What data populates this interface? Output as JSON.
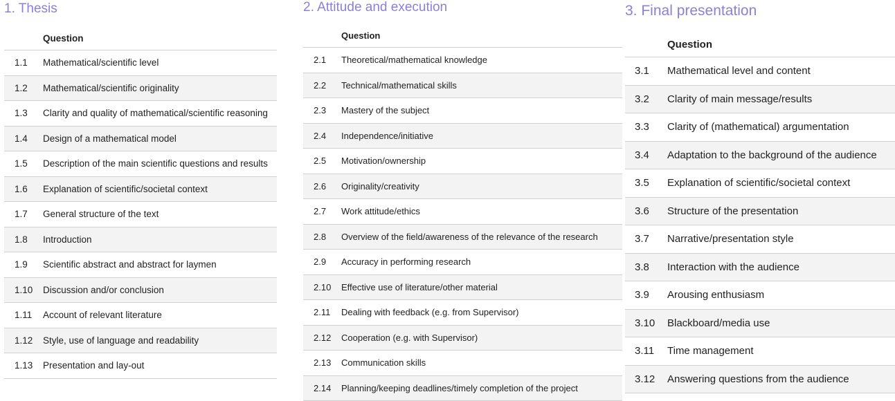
{
  "colors": {
    "title": "#8b80d9",
    "row_alt": "#f3f3f3",
    "divider": "#d0d0d0"
  },
  "sections": [
    {
      "title": "1. Thesis",
      "header": "Question",
      "items": [
        {
          "num": "1.1",
          "text": "Mathematical/scientific level"
        },
        {
          "num": "1.2",
          "text": "Mathematical/scientific originality"
        },
        {
          "num": "1.3",
          "text": "Clarity and quality of mathematical/scientific reasoning"
        },
        {
          "num": "1.4",
          "text": "Design of a mathematical model"
        },
        {
          "num": "1.5",
          "text": "Description of the main scientific questions and results"
        },
        {
          "num": "1.6",
          "text": "Explanation of scientific/societal context"
        },
        {
          "num": "1.7",
          "text": "General structure of the text"
        },
        {
          "num": "1.8",
          "text": "Introduction"
        },
        {
          "num": "1.9",
          "text": "Scientific abstract and abstract for laymen"
        },
        {
          "num": "1.10",
          "text": "Discussion and/or conclusion"
        },
        {
          "num": "1.11",
          "text": "Account of relevant literature"
        },
        {
          "num": "1.12",
          "text": "Style, use of language and readability"
        },
        {
          "num": "1.13",
          "text": "Presentation and lay-out"
        }
      ]
    },
    {
      "title": "2. Attitude and execution",
      "header": "Question",
      "items": [
        {
          "num": "2.1",
          "text": "Theoretical/mathematical knowledge"
        },
        {
          "num": "2.2",
          "text": "Technical/mathematical skills"
        },
        {
          "num": "2.3",
          "text": "Mastery of the subject"
        },
        {
          "num": "2.4",
          "text": "Independence/initiative"
        },
        {
          "num": "2.5",
          "text": "Motivation/ownership"
        },
        {
          "num": "2.6",
          "text": "Originality/creativity"
        },
        {
          "num": "2.7",
          "text": "Work attitude/ethics"
        },
        {
          "num": "2.8",
          "text": "Overview of the field/awareness of the relevance of the research"
        },
        {
          "num": "2.9",
          "text": "Accuracy in performing research"
        },
        {
          "num": "2.10",
          "text": "Effective use of literature/other material"
        },
        {
          "num": "2.11",
          "text": "Dealing with feedback (e.g. from Supervisor)"
        },
        {
          "num": "2.12",
          "text": "Cooperation (e.g. with Supervisor)"
        },
        {
          "num": "2.13",
          "text": "Communication skills"
        },
        {
          "num": "2.14",
          "text": "Planning/keeping deadlines/timely completion of the project"
        }
      ]
    },
    {
      "title": "3. Final presentation",
      "header": "Question",
      "items": [
        {
          "num": "3.1",
          "text": "Mathematical level and content"
        },
        {
          "num": "3.2",
          "text": "Clarity of main message/results"
        },
        {
          "num": "3.3",
          "text": "Clarity of (mathematical) argumentation"
        },
        {
          "num": "3.4",
          "text": "Adaptation to the background of the audience"
        },
        {
          "num": "3.5",
          "text": "Explanation of scientific/societal context"
        },
        {
          "num": "3.6",
          "text": "Structure of the presentation"
        },
        {
          "num": "3.7",
          "text": "Narrative/presentation style"
        },
        {
          "num": "3.8",
          "text": "Interaction with the audience"
        },
        {
          "num": "3.9",
          "text": "Arousing enthusiasm"
        },
        {
          "num": "3.10",
          "text": "Blackboard/media use"
        },
        {
          "num": "3.11",
          "text": "Time management"
        },
        {
          "num": "3.12",
          "text": "Answering questions from the audience"
        }
      ]
    }
  ]
}
